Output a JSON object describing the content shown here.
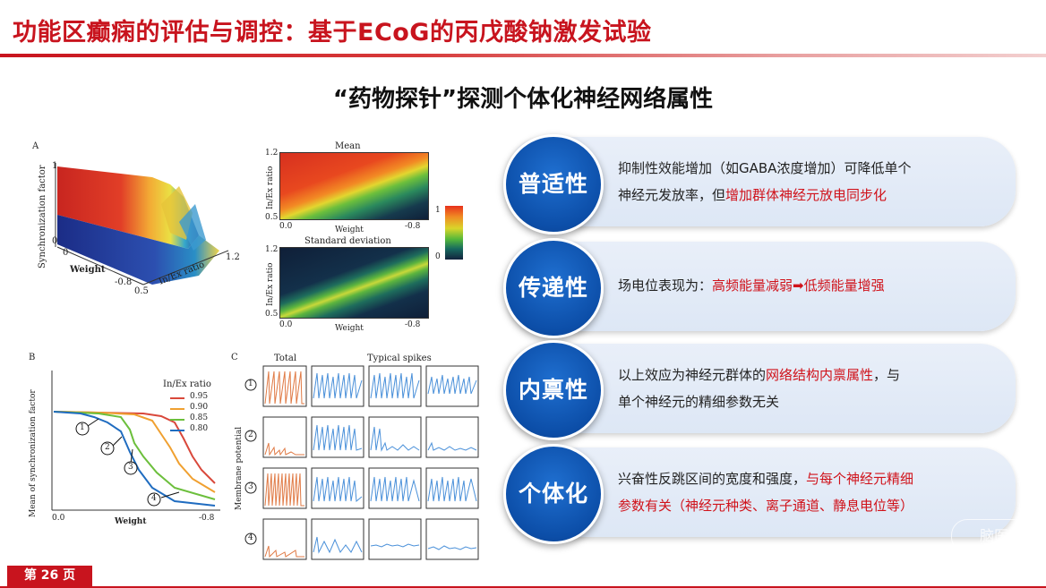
{
  "header": {
    "title": "功能区癫痫的评估与调控：基于ECoG的丙戊酸钠激发试验"
  },
  "subtitle": "“药物探针”探测个体化神经网络属性",
  "figure": {
    "panel_a": {
      "label": "A",
      "zlabel": "Synchronization factor",
      "z_top": "1",
      "z_bottom": "0",
      "weight_label": "Weight",
      "weight_0": "0",
      "weight_end": "-0.8",
      "ratio_label": "In/Ex ratio",
      "ratio_start": "0.5",
      "ratio_end": "1.2"
    },
    "heatmap_mean": {
      "title": "Mean",
      "ylabel": "In/Ex ratio",
      "y_top": "1.2",
      "y_bottom": "0.5",
      "xlabel": "Weight",
      "x_left": "0.0",
      "x_right": "-0.8"
    },
    "heatmap_sd": {
      "title": "Standard deviation",
      "ylabel": "In/Ex ratio",
      "y_top": "1.2",
      "y_bottom": "0.5",
      "xlabel": "Weight",
      "x_left": "0.0",
      "x_right": "-0.8"
    },
    "colorbar": {
      "top": "1",
      "bottom": "0"
    },
    "panel_b": {
      "label": "B",
      "ylabel": "Mean of synchronization factor",
      "xlabel": "Weight",
      "x_left": "0.0",
      "x_right": "-0.8",
      "legend_title": "In/Ex ratio",
      "legend": [
        {
          "value": "0.95",
          "color": "#d9483b"
        },
        {
          "value": "0.90",
          "color": "#f0a030"
        },
        {
          "value": "0.85",
          "color": "#6cbf3c"
        },
        {
          "value": "0.80",
          "color": "#1f6cc0"
        }
      ],
      "markers": [
        "1",
        "2",
        "3",
        "4"
      ]
    },
    "panel_c": {
      "label": "C",
      "total_label": "Total",
      "spikes_label": "Typical spikes",
      "ylabel": "Membrane potential",
      "rows": [
        "1",
        "2",
        "3",
        "4"
      ]
    }
  },
  "cards": [
    {
      "badge": "普适性",
      "line1": "抑制性效能增加（如GABA浓度增加）可降低单个",
      "line2_plain": "神经元发放率，但",
      "line2_highlight": "增加群体神经元放电同步化",
      "line2_tail": ""
    },
    {
      "badge": "传递性",
      "line1_plain": "场电位表现为：",
      "line1_highlight": "高频能量减弱➡低频能量增强"
    },
    {
      "badge": "内禀性",
      "line1_plain": "以上效应为神经元群体的",
      "line1_highlight": "网络结构内禀属性",
      "line1_tail": "，与",
      "line2": "单个神经元的精细参数无关"
    },
    {
      "badge": "个体化",
      "line1_plain": "兴奋性反跳区间的宽度和强度，",
      "line1_highlight": "与每个神经元精细",
      "line2_highlight": "参数有关（神经元种类、离子通道、静息电位等）"
    }
  ],
  "footer": {
    "page": "第 26 页",
    "watermark": "脑医汇"
  },
  "colors": {
    "accent_red": "#c8141e",
    "badge_blue": "#0c4ea8",
    "card_bg": "#e4ecf7",
    "highlight": "#d0121a"
  }
}
